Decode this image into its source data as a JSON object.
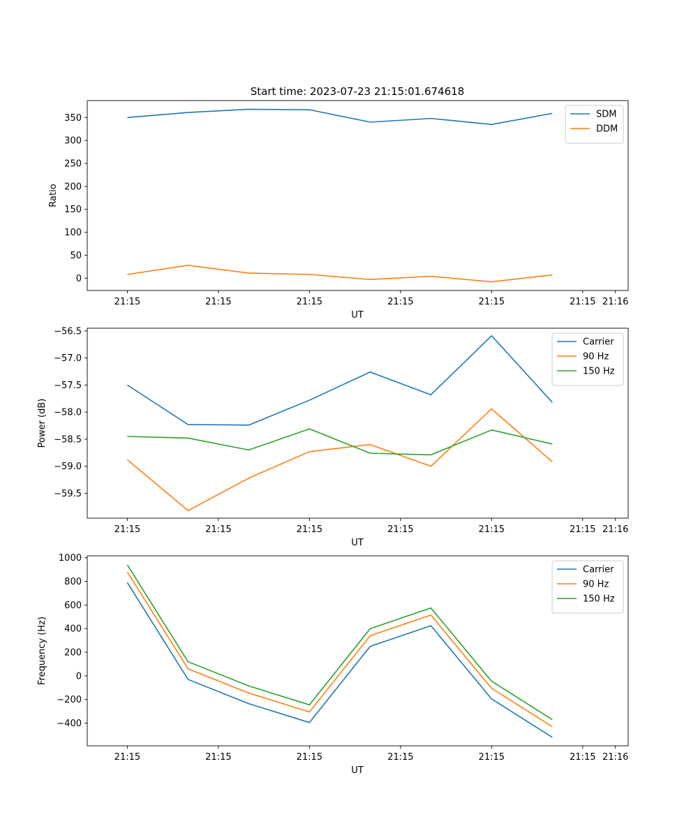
{
  "figure": {
    "title": "Start time: 2023-07-23 21:15:01.674618"
  },
  "colors": {
    "blue": "#1f77b4",
    "orange": "#ff7f0e",
    "green": "#2ca02c",
    "axis": "#000000",
    "legend_border": "#cccccc"
  },
  "chart_data": [
    {
      "type": "line",
      "xlabel": "UT",
      "ylabel": "Ratio",
      "x_tick_labels": [
        "21:15",
        "21:15",
        "21:15",
        "21:15",
        "21:15",
        "21:15",
        "21:16"
      ],
      "x_points": [
        1,
        2,
        3,
        4,
        5,
        6,
        7,
        8
      ],
      "xlim": [
        0.34,
        9.25
      ],
      "ylim": [
        -27,
        387
      ],
      "y_ticks": [
        0,
        50,
        100,
        150,
        200,
        250,
        300,
        350
      ],
      "legend_position": "upper-right",
      "series": [
        {
          "name": "SDM",
          "color": "#1f77b4",
          "values": [
            350,
            361,
            368,
            367,
            340,
            348,
            335,
            359
          ]
        },
        {
          "name": "DDM",
          "color": "#ff7f0e",
          "values": [
            8,
            28,
            11,
            8,
            -3,
            4,
            -8,
            7
          ]
        }
      ]
    },
    {
      "type": "line",
      "xlabel": "UT",
      "ylabel": "Power (dB)",
      "x_tick_labels": [
        "21:15",
        "21:15",
        "21:15",
        "21:15",
        "21:15",
        "21:15",
        "21:16"
      ],
      "x_points": [
        1,
        2,
        3,
        4,
        5,
        6,
        7,
        8
      ],
      "xlim": [
        0.34,
        9.25
      ],
      "ylim": [
        -59.96,
        -56.45
      ],
      "y_ticks": [
        -59.5,
        -59.0,
        -58.5,
        -58.0,
        -57.5,
        -57.0,
        -56.5
      ],
      "y_tick_labels": [
        "−59.5",
        "−59.0",
        "−58.5",
        "−58.0",
        "−57.5",
        "−57.0",
        "−56.5"
      ],
      "legend_position": "upper-right",
      "series": [
        {
          "name": "Carrier",
          "color": "#1f77b4",
          "values": [
            -57.5,
            -58.23,
            -58.24,
            -57.78,
            -57.26,
            -57.68,
            -56.59,
            -57.82
          ]
        },
        {
          "name": "90 Hz",
          "color": "#ff7f0e",
          "values": [
            -58.88,
            -59.82,
            -59.22,
            -58.73,
            -58.6,
            -59.0,
            -57.94,
            -58.92
          ]
        },
        {
          "name": "150 Hz",
          "color": "#2ca02c",
          "values": [
            -58.45,
            -58.48,
            -58.7,
            -58.31,
            -58.76,
            -58.79,
            -58.33,
            -58.59
          ]
        }
      ]
    },
    {
      "type": "line",
      "xlabel": "UT",
      "ylabel": "Frequency (Hz)",
      "x_tick_labels": [
        "21:15",
        "21:15",
        "21:15",
        "21:15",
        "21:15",
        "21:15",
        "21:16"
      ],
      "x_points": [
        1,
        2,
        3,
        4,
        5,
        6,
        7,
        8
      ],
      "xlim": [
        0.34,
        9.25
      ],
      "ylim": [
        -592,
        1016
      ],
      "y_ticks": [
        -400,
        -200,
        0,
        200,
        400,
        600,
        800,
        1000
      ],
      "y_tick_labels": [
        "−400",
        "−200",
        "0",
        "200",
        "400",
        "600",
        "800",
        "1000"
      ],
      "legend_position": "upper-right",
      "series": [
        {
          "name": "Carrier",
          "color": "#1f77b4",
          "values": [
            790,
            -30,
            -235,
            -395,
            250,
            425,
            -195,
            -520
          ]
        },
        {
          "name": "90 Hz",
          "color": "#ff7f0e",
          "values": [
            880,
            60,
            -145,
            -305,
            340,
            515,
            -105,
            -430
          ]
        },
        {
          "name": "150 Hz",
          "color": "#2ca02c",
          "values": [
            940,
            120,
            -85,
            -245,
            400,
            575,
            -45,
            -370
          ]
        }
      ]
    }
  ]
}
